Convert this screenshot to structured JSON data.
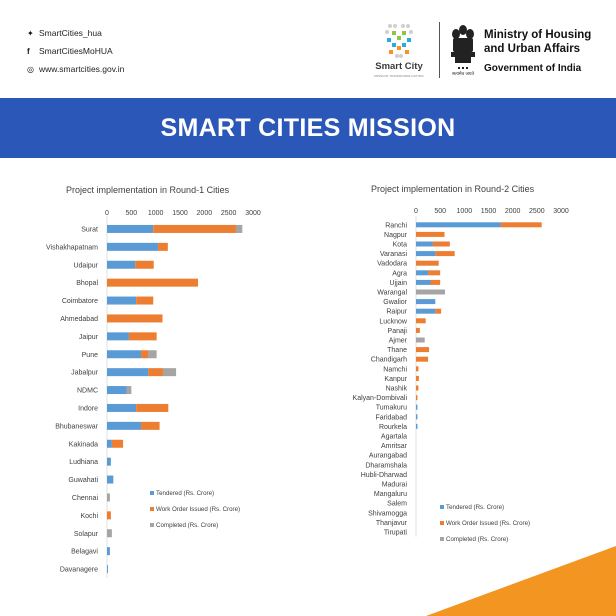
{
  "header": {
    "social": [
      {
        "icon": "twitter-icon",
        "glyph": "✦",
        "label": "SmartCities_hua"
      },
      {
        "icon": "facebook-icon",
        "glyph": "f",
        "label": "SmartCitiesMoHUA"
      },
      {
        "icon": "web-icon",
        "glyph": "◎",
        "label": "www.smartcities.gov.in"
      }
    ],
    "logo_title": "Smart City",
    "logo_tagline": "MISSION TRANSFORM-NATION",
    "ministry_line1": "Ministry of Housing",
    "ministry_line2": "and Urban Affairs",
    "government": "Government of India",
    "emblem_caption": "सत्यमेव जयते"
  },
  "banner": {
    "title": "SMART CITIES MISSION"
  },
  "colors": {
    "tendered": "#5b9bd5",
    "work_order": "#ed7d31",
    "completed": "#a5a5a5",
    "banner": "#2b58b8",
    "accent": "#f39521"
  },
  "chart_data": [
    {
      "type": "bar",
      "orientation": "horizontal",
      "stacked": true,
      "title": "Project implementation in Round-1 Cities",
      "xlim": [
        0,
        3000
      ],
      "xticks": [
        "0",
        "500",
        "1000",
        "1500",
        "2000",
        "2500",
        "3000"
      ],
      "grid": false,
      "legend_position": "lower-right",
      "categories": [
        "Surat",
        "Vishakhapatnam",
        "Udaipur",
        "Bhopal",
        "Coimbatore",
        "Ahmedabad",
        "Jaipur",
        "Pune",
        "Jabalpur",
        "NDMC",
        "Indore",
        "Bhubaneswar",
        "Kakinada",
        "Ludhiana",
        "Guwahati",
        "Chennai",
        "Kochi",
        "Solapur",
        "Belagavi",
        "Davanagere"
      ],
      "series": [
        {
          "name": "Tendered (Rs. Crore)",
          "values": [
            950,
            1050,
            580,
            0,
            600,
            0,
            450,
            700,
            850,
            400,
            600,
            700,
            100,
            80,
            130,
            0,
            0,
            0,
            60,
            20
          ]
        },
        {
          "name": "Work Order Issued (Rs. Crore)",
          "values": [
            1700,
            200,
            380,
            1870,
            350,
            1140,
            570,
            150,
            300,
            0,
            660,
            380,
            230,
            0,
            0,
            0,
            80,
            0,
            0,
            0
          ]
        },
        {
          "name": "Completed (Rs. Crore)",
          "values": [
            130,
            0,
            0,
            0,
            0,
            0,
            0,
            170,
            270,
            100,
            0,
            0,
            0,
            0,
            0,
            60,
            0,
            100,
            0,
            0
          ]
        }
      ]
    },
    {
      "type": "bar",
      "orientation": "horizontal",
      "stacked": true,
      "title": "Project implementation in Round-2 Cities",
      "xlim": [
        0,
        3000
      ],
      "xticks": [
        "0",
        "500",
        "1000",
        "1500",
        "2000",
        "2500",
        "3000"
      ],
      "grid": false,
      "legend_position": "lower-left",
      "categories": [
        "Ranchi",
        "Nagpur",
        "Kota",
        "Varanasi",
        "Vadodara",
        "Agra",
        "Ujjain",
        "Warangal",
        "Gwalior",
        "Raipur",
        "Lucknow",
        "Panaji",
        "Ajmer",
        "Thane",
        "Chandigarh",
        "Namchi",
        "Kanpur",
        "Nashik",
        "Kalyan-Dombivali",
        "Tumakuru",
        "Faridabad",
        "Rourkela",
        "Agartala",
        "Amritsar",
        "Aurangabad",
        "Dharamshala",
        "Hubli-Dharwad",
        "Madurai",
        "Mangaluru",
        "Salem",
        "Shivamogga",
        "Thanjavur",
        "Tirupati"
      ],
      "series": [
        {
          "name": "Tendered (Rs. Crore)",
          "values": [
            1750,
            0,
            350,
            400,
            0,
            250,
            300,
            0,
            400,
            400,
            0,
            0,
            0,
            0,
            0,
            0,
            0,
            0,
            0,
            30,
            30,
            30,
            0,
            0,
            0,
            0,
            0,
            0,
            0,
            0,
            0,
            0,
            0
          ]
        },
        {
          "name": "Work Order Issued (Rs. Crore)",
          "values": [
            850,
            590,
            350,
            400,
            470,
            250,
            200,
            0,
            0,
            120,
            200,
            80,
            0,
            270,
            250,
            50,
            60,
            50,
            30,
            0,
            0,
            0,
            0,
            0,
            0,
            0,
            0,
            0,
            0,
            0,
            0,
            0,
            0
          ]
        },
        {
          "name": "Completed (Rs. Crore)",
          "values": [
            0,
            0,
            0,
            0,
            0,
            0,
            0,
            600,
            0,
            0,
            0,
            0,
            180,
            0,
            0,
            0,
            0,
            0,
            0,
            0,
            0,
            0,
            0,
            0,
            0,
            0,
            0,
            0,
            0,
            0,
            0,
            0,
            0
          ]
        }
      ]
    }
  ]
}
